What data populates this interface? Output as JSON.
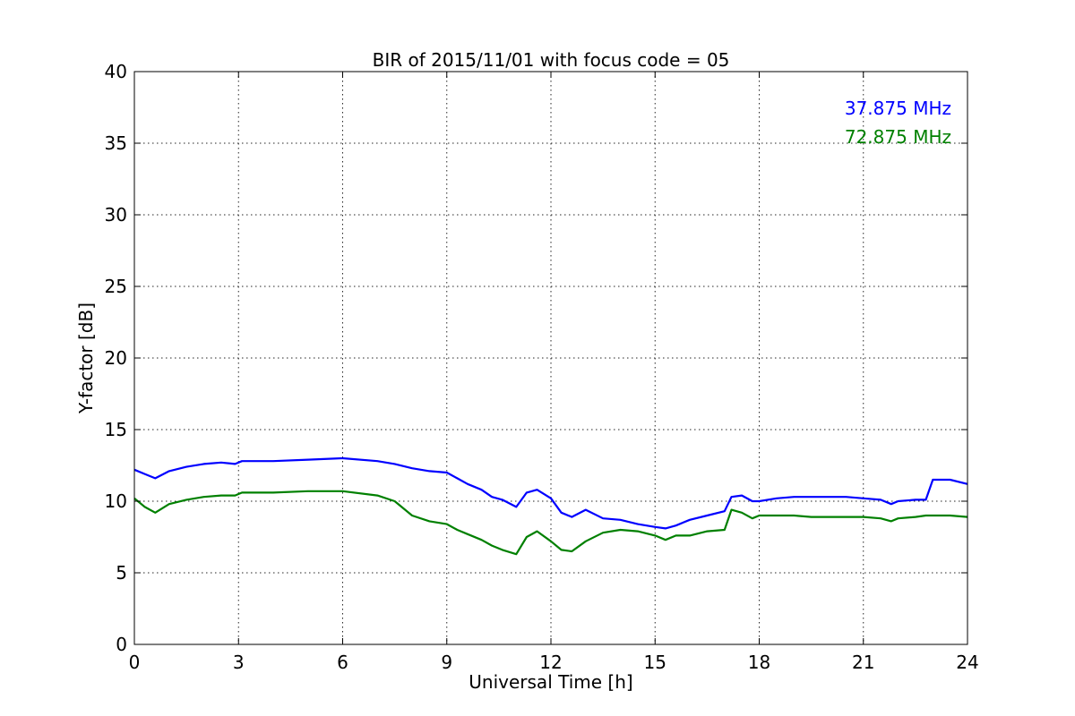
{
  "chart_data": {
    "type": "line",
    "title": "BIR of 2015/11/01 with focus code = 05",
    "xlabel": "Universal Time [h]",
    "ylabel": "Y-factor [dB]",
    "xlim": [
      0,
      24
    ],
    "ylim": [
      0,
      40
    ],
    "xticks": [
      0,
      3,
      6,
      9,
      12,
      15,
      18,
      21,
      24
    ],
    "yticks": [
      0,
      5,
      10,
      15,
      20,
      25,
      30,
      35,
      40
    ],
    "grid": true,
    "legend_placement": "top-right",
    "series": [
      {
        "name": "37.875 MHz",
        "color": "#0000ff",
        "x": [
          0.0,
          0.3,
          0.6,
          1.0,
          1.5,
          2.0,
          2.5,
          2.9,
          3.1,
          4.0,
          5.0,
          6.0,
          7.0,
          7.5,
          8.0,
          8.5,
          9.0,
          9.3,
          9.6,
          10.0,
          10.3,
          10.6,
          11.0,
          11.3,
          11.6,
          12.0,
          12.3,
          12.6,
          13.0,
          13.5,
          14.0,
          14.5,
          15.0,
          15.3,
          15.6,
          16.0,
          16.5,
          17.0,
          17.2,
          17.5,
          17.8,
          18.0,
          18.5,
          19.0,
          19.5,
          20.0,
          20.5,
          21.0,
          21.5,
          21.8,
          22.0,
          22.5,
          22.8,
          23.0,
          23.5,
          24.0
        ],
        "y": [
          12.2,
          11.9,
          11.6,
          12.1,
          12.4,
          12.6,
          12.7,
          12.6,
          12.8,
          12.8,
          12.9,
          13.0,
          12.8,
          12.6,
          12.3,
          12.1,
          12.0,
          11.6,
          11.2,
          10.8,
          10.3,
          10.1,
          9.6,
          10.6,
          10.8,
          10.2,
          9.2,
          8.9,
          9.4,
          8.8,
          8.7,
          8.4,
          8.2,
          8.1,
          8.3,
          8.7,
          9.0,
          9.3,
          10.3,
          10.4,
          10.0,
          10.0,
          10.2,
          10.3,
          10.3,
          10.3,
          10.3,
          10.2,
          10.1,
          9.8,
          10.0,
          10.1,
          10.1,
          11.5,
          11.5,
          11.2
        ]
      },
      {
        "name": "72.875 MHz",
        "color": "#008000",
        "x": [
          0.0,
          0.3,
          0.6,
          1.0,
          1.5,
          2.0,
          2.5,
          2.9,
          3.1,
          4.0,
          5.0,
          6.0,
          7.0,
          7.5,
          8.0,
          8.5,
          9.0,
          9.3,
          9.6,
          10.0,
          10.3,
          10.6,
          11.0,
          11.3,
          11.6,
          12.0,
          12.3,
          12.6,
          13.0,
          13.5,
          14.0,
          14.5,
          15.0,
          15.3,
          15.6,
          16.0,
          16.5,
          17.0,
          17.2,
          17.5,
          17.8,
          18.0,
          18.5,
          19.0,
          19.5,
          20.0,
          20.5,
          21.0,
          21.5,
          21.8,
          22.0,
          22.5,
          22.8,
          23.0,
          23.5,
          24.0
        ],
        "y": [
          10.2,
          9.6,
          9.2,
          9.8,
          10.1,
          10.3,
          10.4,
          10.4,
          10.6,
          10.6,
          10.7,
          10.7,
          10.4,
          10.0,
          9.0,
          8.6,
          8.4,
          8.0,
          7.7,
          7.3,
          6.9,
          6.6,
          6.3,
          7.5,
          7.9,
          7.2,
          6.6,
          6.5,
          7.2,
          7.8,
          8.0,
          7.9,
          7.6,
          7.3,
          7.6,
          7.6,
          7.9,
          8.0,
          9.4,
          9.2,
          8.8,
          9.0,
          9.0,
          9.0,
          8.9,
          8.9,
          8.9,
          8.9,
          8.8,
          8.6,
          8.8,
          8.9,
          9.0,
          9.0,
          9.0,
          8.9
        ]
      }
    ]
  }
}
